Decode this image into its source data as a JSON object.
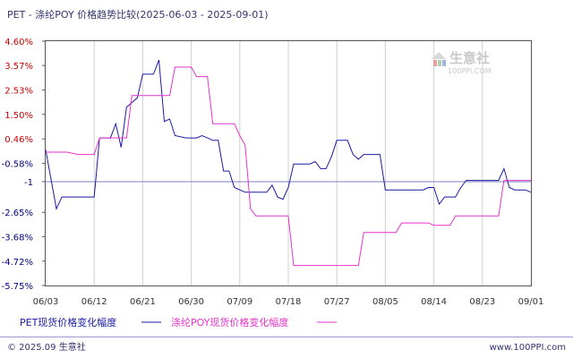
{
  "title": "PET - 涤纶POY 价格趋势比较(2025-06-03 - 2025-09-01)",
  "watermark": {
    "name": "生意社",
    "url": "100PPI.COM"
  },
  "footer": {
    "left": "© 2025.09 生意社",
    "right": "www.100PPI.com"
  },
  "colors": {
    "pet": "#1a1aa6",
    "poy": "#e633cc",
    "axis_pos": "#cc0000",
    "axis_neg": "#000080",
    "zero_line": "#7f7fbf"
  },
  "chart_data": {
    "type": "line",
    "title": "PET - 涤纶POY 价格趋势比较(2025-06-03 - 2025-09-01)",
    "x_ticks": [
      "06/03",
      "06/12",
      "06/21",
      "06/30",
      "07/09",
      "07/18",
      "07/27",
      "08/05",
      "08/14",
      "08/23",
      "09/01"
    ],
    "y_ticks": [
      "4.60%",
      "3.57%",
      "2.53%",
      "1.50%",
      "0.46%",
      "-0.58%",
      "-1",
      "-2.65%",
      "-3.68%",
      "-4.72%",
      "-5.75%"
    ],
    "y_tick_values": [
      4.6,
      3.57,
      2.53,
      1.5,
      0.46,
      -0.58,
      -1.35,
      -2.65,
      -3.68,
      -4.72,
      -5.75
    ],
    "ylim": [
      -5.75,
      4.6
    ],
    "xlim": [
      "2025-06-03",
      "2025-09-01"
    ],
    "grid": "vertical",
    "legend_position": "bottom-left",
    "series": [
      {
        "name": "PET现货价格变化幅度",
        "color": "#1a1aa6",
        "points": [
          [
            "2025-06-03",
            0.0
          ],
          [
            "2025-06-05",
            -2.5
          ],
          [
            "2025-06-06",
            -2.0
          ],
          [
            "2025-06-12",
            -2.0
          ],
          [
            "2025-06-13",
            0.5
          ],
          [
            "2025-06-15",
            0.5
          ],
          [
            "2025-06-16",
            1.1
          ],
          [
            "2025-06-17",
            0.1
          ],
          [
            "2025-06-18",
            1.8
          ],
          [
            "2025-06-20",
            2.2
          ],
          [
            "2025-06-21",
            3.2
          ],
          [
            "2025-06-23",
            3.2
          ],
          [
            "2025-06-24",
            3.8
          ],
          [
            "2025-06-25",
            1.2
          ],
          [
            "2025-06-26",
            1.3
          ],
          [
            "2025-06-27",
            0.6
          ],
          [
            "2025-06-29",
            0.5
          ],
          [
            "2025-07-01",
            0.5
          ],
          [
            "2025-07-02",
            0.6
          ],
          [
            "2025-07-03",
            0.5
          ],
          [
            "2025-07-04",
            0.4
          ],
          [
            "2025-07-05",
            0.4
          ],
          [
            "2025-07-06",
            -0.9
          ],
          [
            "2025-07-07",
            -0.9
          ],
          [
            "2025-07-08",
            -1.6
          ],
          [
            "2025-07-10",
            -1.8
          ],
          [
            "2025-07-12",
            -1.8
          ],
          [
            "2025-07-14",
            -1.8
          ],
          [
            "2025-07-15",
            -1.5
          ],
          [
            "2025-07-16",
            -2.0
          ],
          [
            "2025-07-17",
            -2.1
          ],
          [
            "2025-07-18",
            -1.6
          ],
          [
            "2025-07-19",
            -0.6
          ],
          [
            "2025-07-22",
            -0.6
          ],
          [
            "2025-07-23",
            -0.5
          ],
          [
            "2025-07-24",
            -0.8
          ],
          [
            "2025-07-25",
            -0.8
          ],
          [
            "2025-07-26",
            -0.3
          ],
          [
            "2025-07-27",
            0.4
          ],
          [
            "2025-07-29",
            0.4
          ],
          [
            "2025-07-30",
            -0.2
          ],
          [
            "2025-07-31",
            -0.4
          ],
          [
            "2025-08-01",
            -0.2
          ],
          [
            "2025-08-04",
            -0.2
          ],
          [
            "2025-08-05",
            -1.7
          ],
          [
            "2025-08-12",
            -1.7
          ],
          [
            "2025-08-13",
            -1.6
          ],
          [
            "2025-08-14",
            -1.6
          ],
          [
            "2025-08-15",
            -2.3
          ],
          [
            "2025-08-16",
            -2.0
          ],
          [
            "2025-08-18",
            -2.0
          ],
          [
            "2025-08-19",
            -1.6
          ],
          [
            "2025-08-20",
            -1.3
          ],
          [
            "2025-08-26",
            -1.3
          ],
          [
            "2025-08-27",
            -0.8
          ],
          [
            "2025-08-28",
            -1.6
          ],
          [
            "2025-08-29",
            -1.7
          ],
          [
            "2025-08-31",
            -1.7
          ],
          [
            "2025-09-01",
            -1.8
          ]
        ]
      },
      {
        "name": "涤纶POY现货价格变化幅度",
        "color": "#e633cc",
        "points": [
          [
            "2025-06-03",
            -0.1
          ],
          [
            "2025-06-07",
            -0.1
          ],
          [
            "2025-06-09",
            -0.2
          ],
          [
            "2025-06-12",
            -0.2
          ],
          [
            "2025-06-13",
            0.5
          ],
          [
            "2025-06-18",
            0.5
          ],
          [
            "2025-06-19",
            2.3
          ],
          [
            "2025-06-26",
            2.3
          ],
          [
            "2025-06-27",
            3.5
          ],
          [
            "2025-06-30",
            3.5
          ],
          [
            "2025-07-01",
            3.1
          ],
          [
            "2025-07-03",
            3.1
          ],
          [
            "2025-07-04",
            1.1
          ],
          [
            "2025-07-08",
            1.1
          ],
          [
            "2025-07-09",
            0.6
          ],
          [
            "2025-07-10",
            0.2
          ],
          [
            "2025-07-11",
            -2.5
          ],
          [
            "2025-07-12",
            -2.8
          ],
          [
            "2025-07-18",
            -2.8
          ],
          [
            "2025-07-19",
            -4.9
          ],
          [
            "2025-07-31",
            -4.9
          ],
          [
            "2025-08-01",
            -3.5
          ],
          [
            "2025-08-07",
            -3.5
          ],
          [
            "2025-08-08",
            -3.1
          ],
          [
            "2025-08-13",
            -3.1
          ],
          [
            "2025-08-14",
            -3.2
          ],
          [
            "2025-08-17",
            -3.2
          ],
          [
            "2025-08-18",
            -2.8
          ],
          [
            "2025-08-26",
            -2.8
          ],
          [
            "2025-08-27",
            -1.3
          ],
          [
            "2025-09-01",
            -1.3
          ]
        ]
      }
    ]
  }
}
